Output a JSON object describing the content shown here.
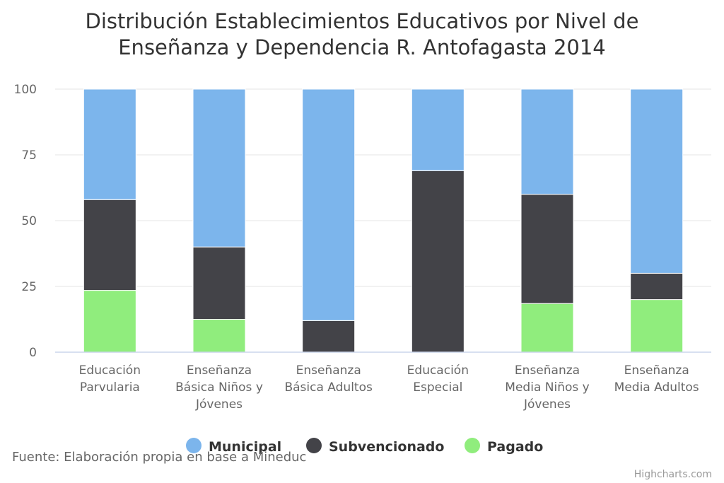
{
  "chart_data": {
    "type": "bar",
    "stacked": true,
    "title": "Distribución Establecimientos Educativos por Nivel de Enseñanza y Dependencia R. Antofagasta 2014",
    "title_lines": [
      "Distribución Establecimientos Educativos por Nivel de",
      "Enseñanza y Dependencia R. Antofagasta 2014"
    ],
    "categories": [
      "Educación Parvularia",
      "Enseñanza Básica Niños y Jóvenes",
      "Enseñanza Básica Adultos",
      "Educación Especial",
      "Enseñanza Media Niños y Jóvenes",
      "Enseñanza Media Adultos"
    ],
    "category_lines": [
      [
        "Educación",
        "Parvularia"
      ],
      [
        "Enseñanza",
        "Básica Niños y",
        "Jóvenes"
      ],
      [
        "Enseñanza",
        "Básica Adultos"
      ],
      [
        "Educación",
        "Especial"
      ],
      [
        "Enseñanza",
        "Media Niños y",
        "Jóvenes"
      ],
      [
        "Enseñanza",
        "Media Adultos"
      ]
    ],
    "series": [
      {
        "name": "Municipal",
        "color": "#7cb5ec",
        "values": [
          42,
          60,
          88,
          31,
          40,
          70
        ]
      },
      {
        "name": "Subvencionado",
        "color": "#434348",
        "values": [
          34.5,
          27.5,
          12,
          69,
          41.5,
          10
        ]
      },
      {
        "name": "Pagado",
        "color": "#90ed7d",
        "values": [
          23.5,
          12.5,
          0,
          0,
          18.5,
          20
        ]
      }
    ],
    "stack_order_bottom_to_top": [
      "Pagado",
      "Subvencionado",
      "Municipal"
    ],
    "ylim": [
      0,
      100
    ],
    "yticks": [
      0,
      25,
      50,
      75,
      100
    ],
    "grid": true,
    "legend_placement": "bottom-center",
    "xlabel": "",
    "ylabel": ""
  },
  "source_text": "Fuente: Elaboración propia en base a Mineduc",
  "credits_text": "Highcharts.com"
}
